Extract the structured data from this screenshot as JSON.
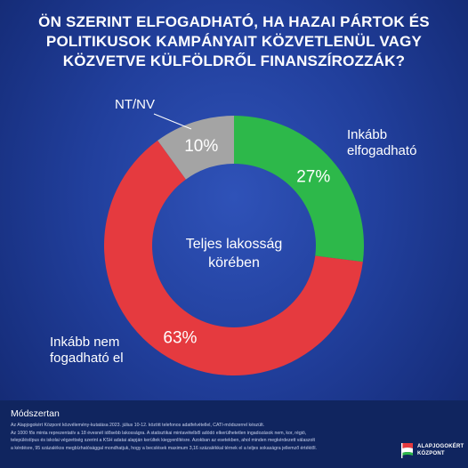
{
  "title_lines": [
    "ÖN SZERINT ELFOGADHATÓ, HA HAZAI PÁRTOK ÉS",
    "POLITIKUSOK KAMPÁNYAIT KÖZVETLENÜL VAGY",
    "KÖZVETVE KÜLFÖLDRŐL FINANSZÍROZZÁK?"
  ],
  "chart_data": {
    "type": "pie",
    "subtype": "donut",
    "center_label_lines": [
      "Teljes lakosság",
      "körében"
    ],
    "slices": [
      {
        "label_lines": [
          "Inkább",
          "elfogadható"
        ],
        "value": 27,
        "value_label": "27%",
        "color": "#2db84a"
      },
      {
        "label_lines": [
          "Inkább nem",
          "fogadható el"
        ],
        "value": 63,
        "value_label": "63%",
        "color": "#e53a3f"
      },
      {
        "label_lines": [
          "NT/NV"
        ],
        "value": 10,
        "value_label": "10%",
        "color": "#a4a4a4"
      }
    ]
  },
  "colors": {
    "background": "#213f9c",
    "footer": "#10255f"
  },
  "footer": {
    "methodology_title": "Módszertan",
    "methodology_lines": [
      "Az Alapjogokért Központ közvélemény-kutatása 2023. július 10-12. között telefonos adatfelvétellel, CATI-módszerrel készült.",
      "Az 1000 fős minta reprezentatív a 18 évesnél idősebb lakosságra. A statisztikai mintavételből adódó elkerülhetetlen ingadozások nem, kor, régió,",
      "településtípus és iskolai végzettség szerint a KSH adatai alapján kerültek kiegyenlítésre. Azokban az esetekben, ahol minden megkérdezett válaszolt",
      "a kérdésre, 95 százalékos megbízhatósággal mondhatjuk, hogy a becslések maximum 3,16 százalékkal térnek el a teljes sokaságra jellemző értéktől."
    ],
    "logo_lines": [
      "ALAPJOGOKÉRT",
      "KÖZPONT"
    ],
    "logo_icon": "flag-logo-icon"
  }
}
